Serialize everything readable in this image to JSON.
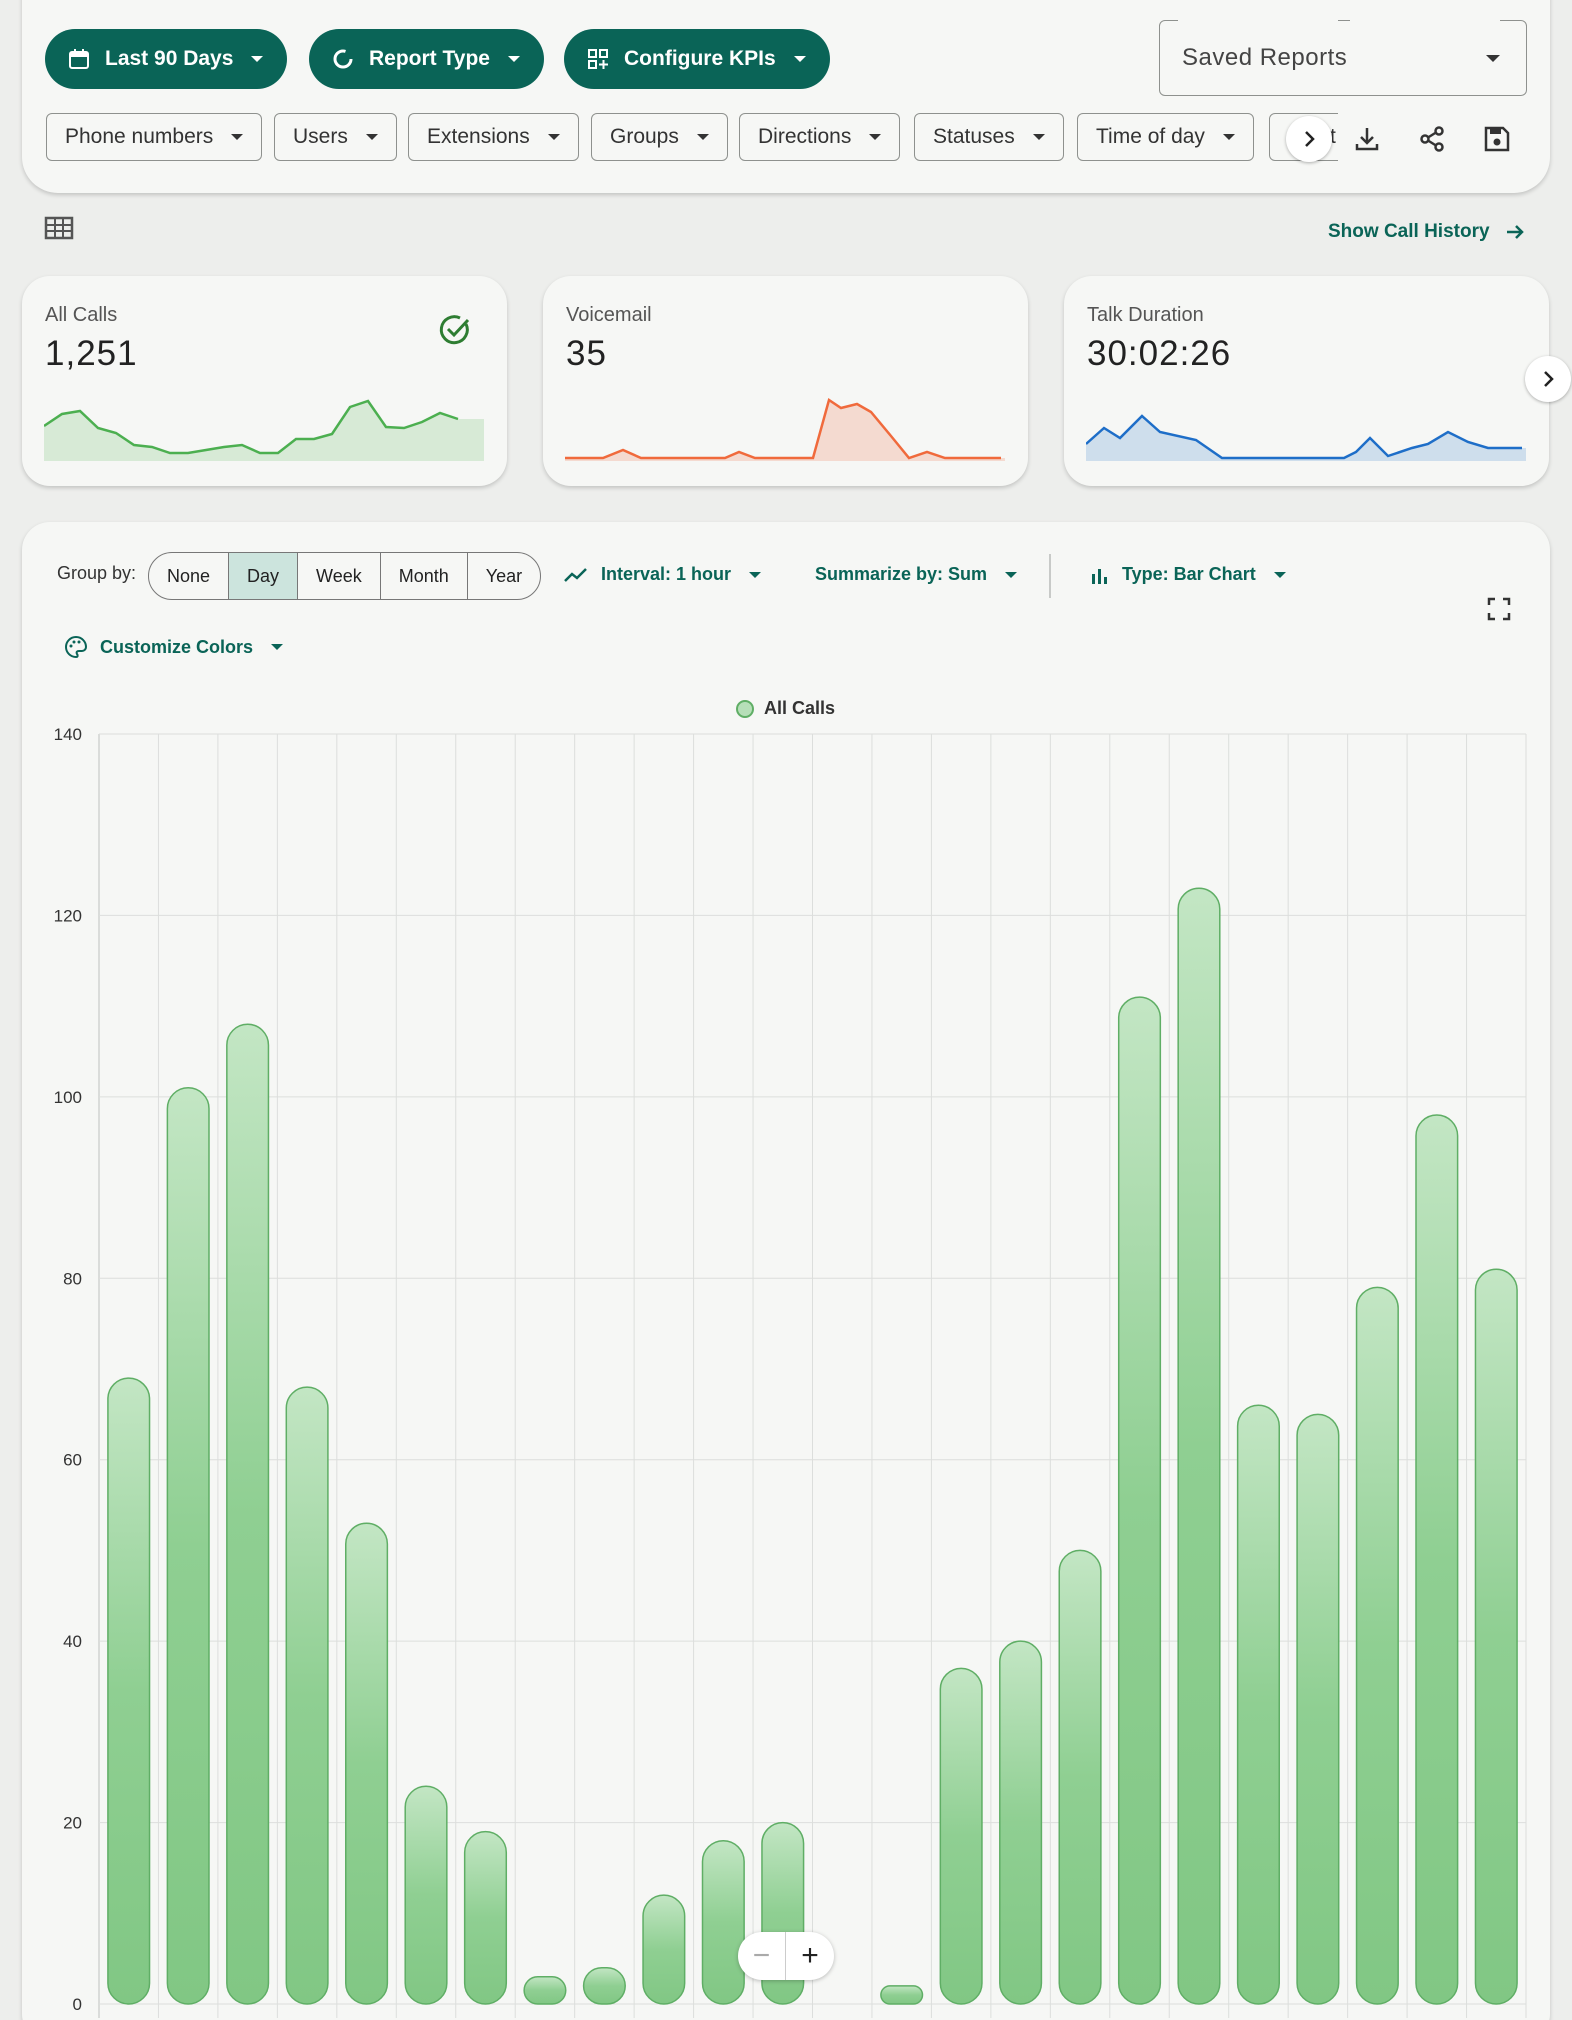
{
  "toolbar": {
    "date_range": "Last 90 Days",
    "report_type": "Report Type",
    "configure_kpis": "Configure KPIs",
    "saved_reports": "Saved Reports"
  },
  "filters": [
    "Phone numbers",
    "Users",
    "Extensions",
    "Groups",
    "Directions",
    "Statuses",
    "Time of day",
    "t"
  ],
  "links": {
    "call_history": "Show Call History"
  },
  "kpis": [
    {
      "label": "All Calls",
      "value": "1,251",
      "color": "#4caf50"
    },
    {
      "label": "Voicemail",
      "value": "35",
      "color": "#f06a3c"
    },
    {
      "label": "Talk Duration",
      "value": "30:02:26",
      "color": "#1e6ec8"
    }
  ],
  "controls": {
    "group_by_label": "Group by:",
    "group_options": [
      "None",
      "Day",
      "Week",
      "Month",
      "Year"
    ],
    "group_selected": "Day",
    "interval": "Interval: 1 hour",
    "summarize": "Summarize by: Sum",
    "type": "Type: Bar Chart",
    "customize_colors": "Customize Colors"
  },
  "chart_data": {
    "type": "bar",
    "series": [
      {
        "name": "All Calls",
        "color": "#81c784",
        "values": [
          69,
          101,
          108,
          68,
          53,
          24,
          19,
          3,
          4,
          12,
          18,
          20,
          0,
          2,
          37,
          40,
          50,
          111,
          123,
          66,
          65,
          79,
          98,
          81
        ]
      }
    ],
    "ylim": [
      0,
      140
    ],
    "yticks": [
      0,
      20,
      40,
      60,
      80,
      100,
      120,
      140
    ],
    "legend": "top-center",
    "grid": true
  }
}
